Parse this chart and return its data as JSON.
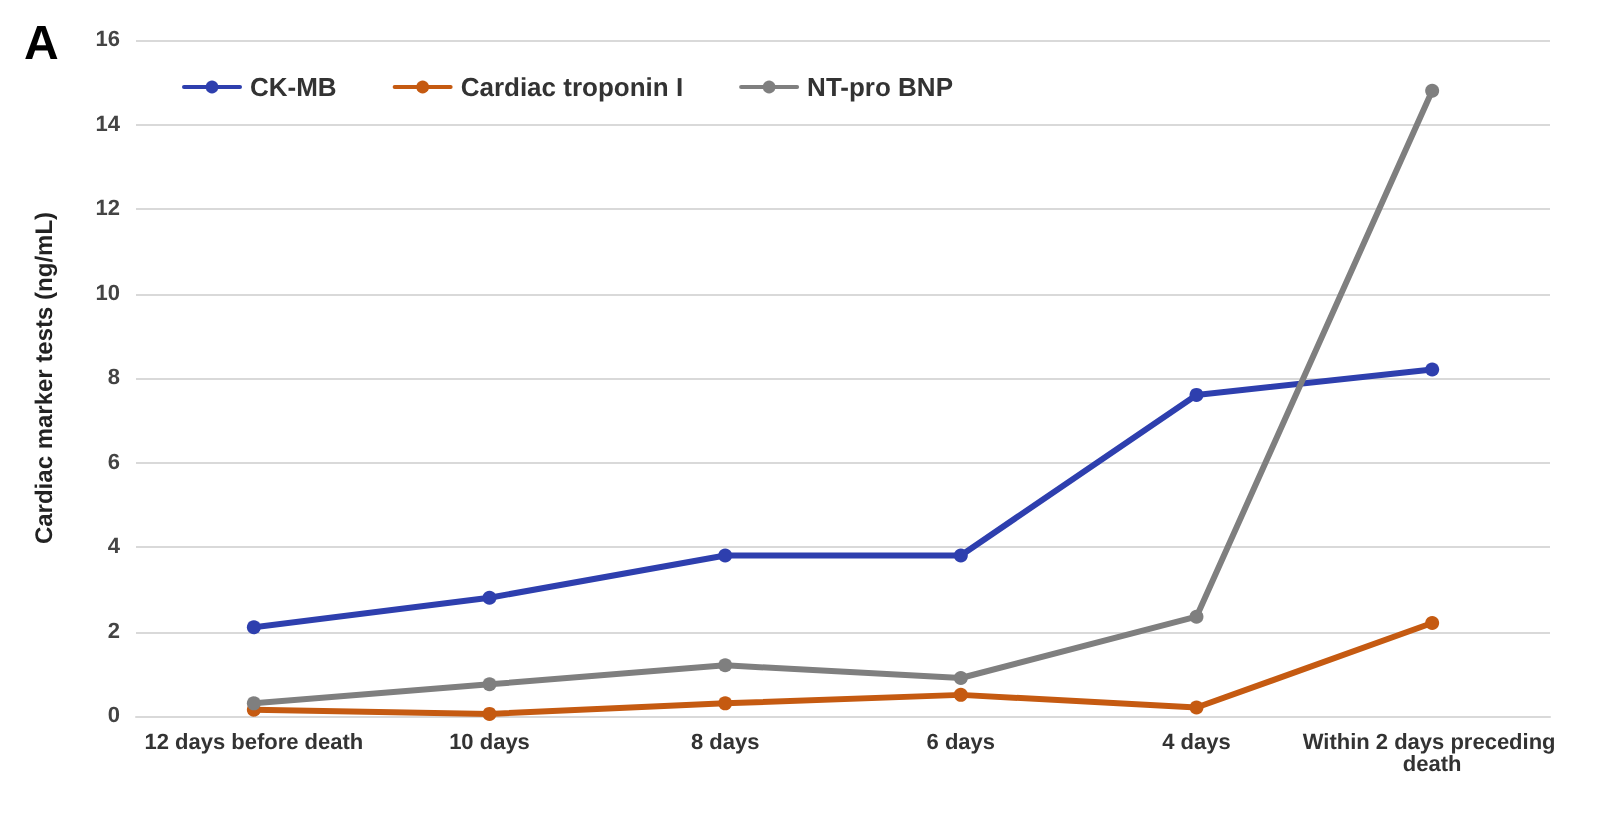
{
  "chart_data": {
    "type": "line",
    "ylabel": "Cardiac marker tests (ng/mL)",
    "annotations": [
      "A"
    ],
    "categories": [
      "12 days before death",
      "10 days",
      "8 days",
      "6 days",
      "4 days",
      "Within 2 days preceding death"
    ],
    "series": [
      {
        "name": "CK-MB",
        "color": "#2e3fae",
        "values": [
          2.1,
          2.8,
          3.8,
          3.8,
          7.6,
          8.2
        ]
      },
      {
        "name": "Cardiac troponin I",
        "color": "#c55a11",
        "values": [
          0.15,
          0.05,
          0.3,
          0.5,
          0.2,
          2.2
        ]
      },
      {
        "name": "NT-pro BNP",
        "color": "#7f7f7f",
        "values": [
          0.3,
          0.75,
          1.2,
          0.9,
          2.35,
          14.8
        ]
      }
    ],
    "ylim": [
      0,
      16
    ],
    "yticks": [
      0,
      2,
      4,
      6,
      8,
      10,
      12,
      14,
      16
    ],
    "grid": "y",
    "legend": "top left",
    "marker": "circle",
    "line_style": "solid"
  }
}
